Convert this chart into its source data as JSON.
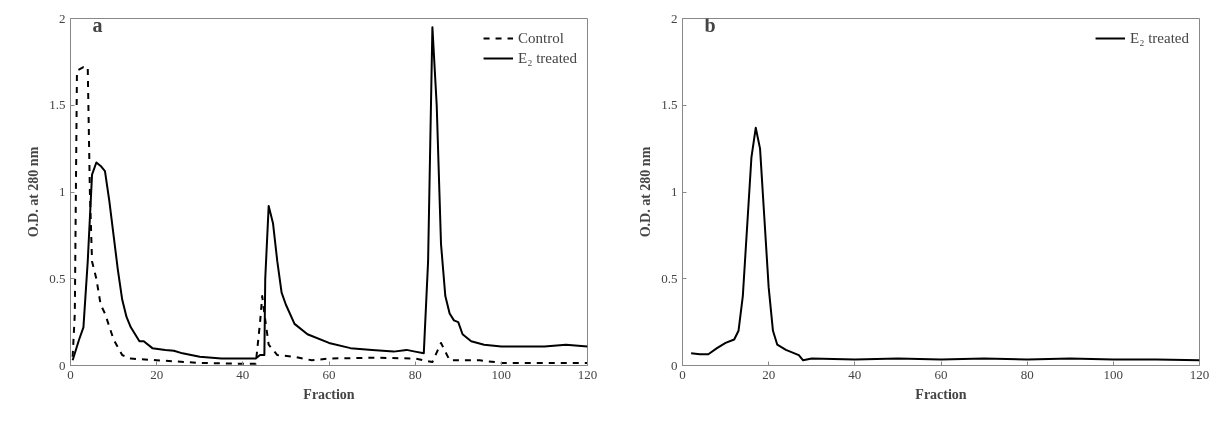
{
  "chart_data": [
    {
      "type": "line",
      "xlabel": "Fraction",
      "ylabel": "O.D. at 280 nm",
      "annotations": [
        "a"
      ],
      "xlim": [
        0,
        120
      ],
      "ylim": [
        0,
        2
      ],
      "xticks": [
        0,
        20,
        40,
        60,
        80,
        100,
        120
      ],
      "yticks": [
        0,
        0.5,
        1,
        1.5,
        2
      ],
      "grid": false,
      "legend": "top right",
      "series": [
        {
          "name": "Control",
          "color": "#000000",
          "line_style": "dashed",
          "x": [
            0.5,
            1,
            1.5,
            3,
            4,
            4.5,
            5,
            6,
            7,
            8,
            10,
            12,
            14,
            20,
            30,
            40,
            43,
            44,
            44.5,
            45,
            46,
            48,
            52,
            56,
            60,
            70,
            80,
            82,
            84,
            86,
            87,
            88,
            95,
            100,
            110,
            120
          ],
          "values": [
            0.05,
            0.3,
            1.7,
            1.72,
            1.72,
            1.0,
            0.6,
            0.5,
            0.35,
            0.3,
            0.15,
            0.06,
            0.04,
            0.03,
            0.015,
            0.01,
            0.01,
            0.25,
            0.4,
            0.3,
            0.12,
            0.06,
            0.05,
            0.03,
            0.04,
            0.045,
            0.04,
            0.03,
            0.02,
            0.13,
            0.08,
            0.03,
            0.03,
            0.015,
            0.015,
            0.015
          ]
        },
        {
          "name": "E₂ treated",
          "color": "#000000",
          "line_style": "solid",
          "x": [
            0.5,
            2,
            3,
            4,
            5,
            6,
            7,
            8,
            9,
            10,
            11,
            12,
            13,
            14,
            16,
            17,
            19,
            22,
            24,
            26,
            30,
            35,
            40,
            43,
            44,
            45,
            45.2,
            46,
            47,
            48,
            49,
            50,
            52,
            55,
            60,
            65,
            70,
            75,
            78,
            80,
            82,
            83,
            84,
            85,
            86,
            87,
            88,
            89,
            90,
            91,
            93,
            96,
            100,
            105,
            110,
            115,
            120
          ],
          "values": [
            0.03,
            0.15,
            0.22,
            0.6,
            1.1,
            1.17,
            1.15,
            1.12,
            0.95,
            0.75,
            0.55,
            0.38,
            0.28,
            0.22,
            0.14,
            0.14,
            0.1,
            0.09,
            0.085,
            0.07,
            0.05,
            0.04,
            0.04,
            0.04,
            0.06,
            0.06,
            0.5,
            0.92,
            0.82,
            0.6,
            0.42,
            0.35,
            0.24,
            0.18,
            0.13,
            0.1,
            0.09,
            0.08,
            0.09,
            0.08,
            0.07,
            0.6,
            1.95,
            1.5,
            0.7,
            0.4,
            0.3,
            0.26,
            0.25,
            0.18,
            0.14,
            0.12,
            0.11,
            0.11,
            0.11,
            0.12,
            0.11
          ]
        }
      ]
    },
    {
      "type": "line",
      "xlabel": "Fraction",
      "ylabel": "O.D. at 280 nm",
      "annotations": [
        "b"
      ],
      "xlim": [
        0,
        120
      ],
      "ylim": [
        0,
        2
      ],
      "xticks": [
        0,
        20,
        40,
        60,
        80,
        100,
        120
      ],
      "yticks": [
        0,
        0.5,
        1,
        1.5,
        2
      ],
      "grid": false,
      "legend": "top right",
      "series": [
        {
          "name": "E₂ treated",
          "color": "#000000",
          "line_style": "solid",
          "x": [
            2,
            4,
            6,
            8,
            10,
            12,
            13,
            14,
            15,
            16,
            17,
            18,
            19,
            20,
            21,
            22,
            24,
            26,
            27,
            28,
            30,
            40,
            50,
            60,
            70,
            80,
            90,
            100,
            110,
            120
          ],
          "values": [
            0.07,
            0.065,
            0.065,
            0.1,
            0.13,
            0.15,
            0.2,
            0.4,
            0.8,
            1.2,
            1.37,
            1.25,
            0.85,
            0.45,
            0.2,
            0.12,
            0.09,
            0.07,
            0.06,
            0.03,
            0.04,
            0.035,
            0.04,
            0.035,
            0.04,
            0.035,
            0.04,
            0.035,
            0.035,
            0.03
          ]
        }
      ]
    }
  ]
}
